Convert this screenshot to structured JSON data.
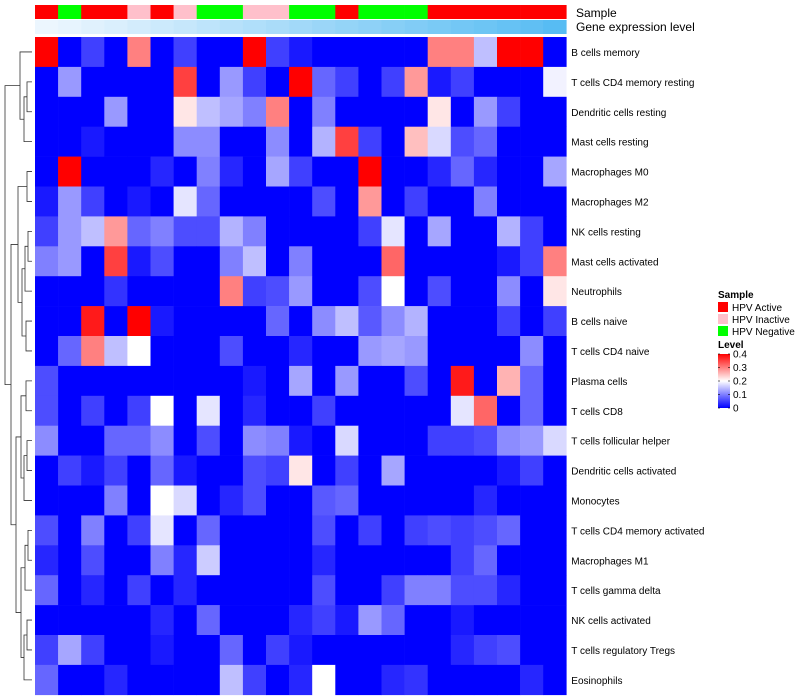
{
  "chart_data": {
    "type": "heatmap",
    "annotation_titles": {
      "sample": "Sample",
      "gene_expression": "Gene expression level"
    },
    "rows": [
      "B cells memory",
      "T cells CD4 memory resting",
      "Dendritic cells resting",
      "Mast cells resting",
      "Macrophages M0",
      "Macrophages M2",
      "NK cells resting",
      "Mast cells activated",
      "Neutrophils",
      "B cells naive",
      "T cells CD4 naive",
      "Plasma cells",
      "T cells CD8",
      "T cells follicular helper",
      "Dendritic cells activated",
      "Monocytes",
      "T cells CD4 memory activated",
      "Macrophages M1",
      "T cells gamma delta",
      "NK cells activated",
      "T cells regulatory  Tregs",
      "Eosinophils"
    ],
    "sample_groups": [
      "A",
      "N",
      "A",
      "A",
      "I",
      "A",
      "I",
      "N",
      "N",
      "I",
      "I",
      "N",
      "N",
      "A",
      "N",
      "N",
      "N",
      "A",
      "A",
      "A",
      "A",
      "A",
      "A"
    ],
    "gene_expression_levels": [
      0.05,
      0.08,
      0.12,
      0.16,
      0.2,
      0.24,
      0.28,
      0.33,
      0.37,
      0.41,
      0.45,
      0.5,
      0.54,
      0.58,
      0.62,
      0.66,
      0.7,
      0.74,
      0.78,
      0.82,
      0.86,
      0.9,
      0.95
    ],
    "values": [
      [
        0.4,
        0.0,
        0.05,
        0.0,
        0.3,
        0.0,
        0.05,
        0.0,
        0.0,
        0.4,
        0.05,
        0.02,
        0.0,
        0.0,
        0.0,
        0.0,
        0.0,
        0.3,
        0.3,
        0.15,
        0.4,
        0.4,
        0.0
      ],
      [
        0.0,
        0.12,
        0.0,
        0.0,
        0.0,
        0.0,
        0.35,
        0.0,
        0.12,
        0.05,
        0.0,
        0.4,
        0.08,
        0.05,
        0.0,
        0.05,
        0.28,
        0.02,
        0.05,
        0.0,
        0.0,
        0.0,
        0.19
      ],
      [
        0.0,
        0.0,
        0.0,
        0.12,
        0.0,
        0.0,
        0.22,
        0.15,
        0.13,
        0.1,
        0.3,
        0.0,
        0.1,
        0.0,
        0.0,
        0.0,
        0.0,
        0.22,
        0.0,
        0.12,
        0.05,
        0.0,
        0.0
      ],
      [
        0.0,
        0.0,
        0.02,
        0.0,
        0.0,
        0.0,
        0.11,
        0.11,
        0.0,
        0.0,
        0.11,
        0.0,
        0.14,
        0.35,
        0.05,
        0.0,
        0.25,
        0.17,
        0.06,
        0.08,
        0.0,
        0.0,
        0.0
      ],
      [
        0.0,
        0.4,
        0.0,
        0.0,
        0.0,
        0.03,
        0.0,
        0.1,
        0.03,
        0.0,
        0.13,
        0.05,
        0.0,
        0.0,
        0.4,
        0.0,
        0.0,
        0.03,
        0.08,
        0.03,
        0.0,
        0.0,
        0.13
      ],
      [
        0.02,
        0.12,
        0.05,
        0.0,
        0.02,
        0.0,
        0.18,
        0.08,
        0.0,
        0.0,
        0.0,
        0.0,
        0.06,
        0.0,
        0.28,
        0.0,
        0.05,
        0.0,
        0.0,
        0.1,
        0.0,
        0.0,
        0.0
      ],
      [
        0.05,
        0.12,
        0.15,
        0.28,
        0.08,
        0.1,
        0.06,
        0.06,
        0.14,
        0.1,
        0.0,
        0.0,
        0.0,
        0.0,
        0.05,
        0.18,
        0.0,
        0.13,
        0.0,
        0.0,
        0.14,
        0.05,
        0.0
      ],
      [
        0.1,
        0.12,
        0.0,
        0.35,
        0.02,
        0.06,
        0.0,
        0.0,
        0.1,
        0.15,
        0.0,
        0.1,
        0.0,
        0.0,
        0.0,
        0.32,
        0.0,
        0.0,
        0.0,
        0.0,
        0.02,
        0.05,
        0.3
      ],
      [
        0.0,
        0.0,
        0.0,
        0.04,
        0.0,
        0.0,
        0.0,
        0.0,
        0.3,
        0.05,
        0.06,
        0.12,
        0.0,
        0.0,
        0.06,
        0.2,
        0.0,
        0.06,
        0.0,
        0.0,
        0.11,
        0.0,
        0.22
      ],
      [
        0.0,
        0.0,
        0.38,
        0.0,
        0.4,
        0.02,
        0.0,
        0.0,
        0.0,
        0.0,
        0.08,
        0.0,
        0.11,
        0.15,
        0.07,
        0.11,
        0.14,
        0.0,
        0.0,
        0.0,
        0.05,
        0.0,
        0.05
      ],
      [
        0.0,
        0.08,
        0.3,
        0.15,
        0.2,
        0.0,
        0.0,
        0.0,
        0.06,
        0.0,
        0.0,
        0.03,
        0.0,
        0.0,
        0.12,
        0.13,
        0.12,
        0.0,
        0.0,
        0.0,
        0.0,
        0.11,
        0.0
      ],
      [
        0.06,
        0.0,
        0.0,
        0.0,
        0.0,
        0.0,
        0.0,
        0.0,
        0.0,
        0.02,
        0.0,
        0.13,
        0.0,
        0.12,
        0.0,
        0.0,
        0.06,
        0.0,
        0.38,
        0.0,
        0.26,
        0.08,
        0.0
      ],
      [
        0.06,
        0.0,
        0.05,
        0.0,
        0.05,
        0.2,
        0.0,
        0.18,
        0.0,
        0.03,
        0.0,
        0.0,
        0.05,
        0.0,
        0.0,
        0.0,
        0.0,
        0.0,
        0.18,
        0.32,
        0.0,
        0.08,
        0.0
      ],
      [
        0.11,
        0.0,
        0.0,
        0.08,
        0.08,
        0.11,
        0.0,
        0.06,
        0.0,
        0.11,
        0.1,
        0.02,
        0.0,
        0.17,
        0.0,
        0.0,
        0.0,
        0.05,
        0.05,
        0.06,
        0.11,
        0.12,
        0.17
      ],
      [
        0.0,
        0.05,
        0.02,
        0.05,
        0.0,
        0.08,
        0.02,
        0.0,
        0.0,
        0.06,
        0.05,
        0.22,
        0.0,
        0.05,
        0.0,
        0.13,
        0.0,
        0.0,
        0.0,
        0.0,
        0.02,
        0.05,
        0.0
      ],
      [
        0.0,
        0.0,
        0.0,
        0.1,
        0.0,
        0.2,
        0.17,
        0.0,
        0.03,
        0.06,
        0.0,
        0.0,
        0.07,
        0.08,
        0.0,
        0.0,
        0.0,
        0.0,
        0.0,
        0.03,
        0.0,
        0.0,
        0.0
      ],
      [
        0.06,
        0.0,
        0.1,
        0.0,
        0.05,
        0.18,
        0.0,
        0.08,
        0.0,
        0.0,
        0.0,
        0.0,
        0.06,
        0.0,
        0.05,
        0.0,
        0.05,
        0.06,
        0.05,
        0.06,
        0.08,
        0.0,
        0.0
      ],
      [
        0.03,
        0.0,
        0.06,
        0.0,
        0.0,
        0.1,
        0.03,
        0.16,
        0.0,
        0.0,
        0.0,
        0.0,
        0.03,
        0.0,
        0.0,
        0.0,
        0.0,
        0.0,
        0.05,
        0.08,
        0.0,
        0.0,
        0.0
      ],
      [
        0.08,
        0.0,
        0.03,
        0.0,
        0.05,
        0.0,
        0.03,
        0.0,
        0.0,
        0.0,
        0.0,
        0.0,
        0.06,
        0.0,
        0.0,
        0.05,
        0.1,
        0.1,
        0.06,
        0.06,
        0.03,
        0.0,
        0.0
      ],
      [
        0.0,
        0.0,
        0.0,
        0.0,
        0.0,
        0.03,
        0.0,
        0.08,
        0.0,
        0.0,
        0.0,
        0.03,
        0.05,
        0.02,
        0.12,
        0.08,
        0.0,
        0.0,
        0.02,
        0.0,
        0.0,
        0.0,
        0.0
      ],
      [
        0.05,
        0.13,
        0.05,
        0.0,
        0.0,
        0.02,
        0.0,
        0.0,
        0.08,
        0.0,
        0.05,
        0.02,
        0.0,
        0.0,
        0.0,
        0.0,
        0.0,
        0.0,
        0.03,
        0.05,
        0.06,
        0.0,
        0.0
      ],
      [
        0.08,
        0.0,
        0.0,
        0.03,
        0.0,
        0.0,
        0.0,
        0.0,
        0.15,
        0.05,
        0.0,
        0.03,
        0.2,
        0.0,
        0.0,
        0.03,
        0.04,
        0.0,
        0.0,
        0.0,
        0.0,
        0.03,
        0.0
      ]
    ],
    "color_scale": {
      "min": 0,
      "mid": 0.2,
      "max": 0.4,
      "low": "#0000ff",
      "midcolor": "#ffffff",
      "high": "#ff0000"
    },
    "legend": {
      "sample_title": "Sample",
      "sample_items": [
        {
          "key": "A",
          "label": "HPV Active",
          "color": "#ff0000"
        },
        {
          "key": "I",
          "label": "HPV Inactive",
          "color": "#ffc0cb"
        },
        {
          "key": "N",
          "label": "HPV Negative",
          "color": "#00ff00"
        }
      ],
      "level_title": "Level",
      "level_ticks": [
        "0.4",
        "0.3",
        "0.2",
        "0.1",
        "0"
      ],
      "level_tick_values": [
        0.4,
        0.3,
        0.2,
        0.1,
        0
      ]
    },
    "gene_expression_colors": {
      "low": "#f4f9ff",
      "high": "#4fb9f2"
    }
  }
}
